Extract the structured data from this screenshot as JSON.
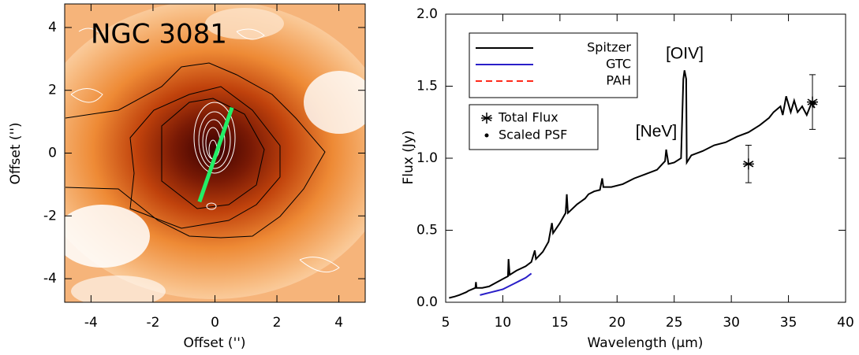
{
  "chart_data": [
    {
      "type": "image",
      "title": "NGC 3081",
      "xlabel": "Offset ('')",
      "ylabel": "Offset ('')",
      "xlim": [
        -4.85,
        4.85
      ],
      "ylim": [
        -4.75,
        4.75
      ],
      "xticks": [
        -4,
        -2,
        0,
        2,
        4
      ],
      "yticks": [
        -4,
        -2,
        0,
        2,
        4
      ],
      "segment": {
        "x": [
          -0.5,
          0.55
        ],
        "y": [
          -1.55,
          1.45
        ],
        "color": "#22ee66"
      }
    },
    {
      "type": "line",
      "xlabel": "Wavelength (μm)",
      "ylabel": "Flux (Jy)",
      "xlim": [
        5,
        40
      ],
      "ylim": [
        0,
        2
      ],
      "xticks": [
        5,
        10,
        15,
        20,
        25,
        30,
        35,
        40
      ],
      "yticks": [
        {
          "value": 0,
          "label": "0.0"
        },
        0.5,
        {
          "value": 1,
          "label": "1.0"
        },
        1.5,
        {
          "value": 2,
          "label": "2.0"
        }
      ],
      "annotations": [
        "[OIV]",
        "[NeV]"
      ],
      "series": [
        {
          "name": "Spitzer",
          "color": "#000000",
          "dash": false,
          "x": [
            5.3,
            5.8,
            6.2,
            6.8,
            7.0,
            7.3,
            7.6,
            7.65,
            7.7,
            8.2,
            8.8,
            9.5,
            10.2,
            10.45,
            10.5,
            10.6,
            11.2,
            12.0,
            12.5,
            12.8,
            12.9,
            13.5,
            14.0,
            14.3,
            14.4,
            15.0,
            15.5,
            15.6,
            15.7,
            16.5,
            17.2,
            17.5,
            18.0,
            18.5,
            18.7,
            18.8,
            19.5,
            20.5,
            21.5,
            22.5,
            23.5,
            24.2,
            24.3,
            24.5,
            25.0,
            25.6,
            25.8,
            25.9,
            26.05,
            26.1,
            26.5,
            27.5,
            28.5,
            29.5,
            30.5,
            31.5,
            32.5,
            33.3,
            33.7,
            34.3,
            34.5,
            34.8,
            35.2,
            35.5,
            35.8,
            36.2,
            36.6,
            37.0,
            37.3
          ],
          "values": [
            0.03,
            0.04,
            0.05,
            0.07,
            0.08,
            0.09,
            0.1,
            0.14,
            0.1,
            0.1,
            0.11,
            0.14,
            0.17,
            0.18,
            0.3,
            0.19,
            0.22,
            0.25,
            0.28,
            0.36,
            0.3,
            0.35,
            0.42,
            0.55,
            0.48,
            0.55,
            0.62,
            0.75,
            0.62,
            0.68,
            0.72,
            0.75,
            0.77,
            0.78,
            0.86,
            0.8,
            0.8,
            0.82,
            0.86,
            0.89,
            0.92,
            0.98,
            1.06,
            0.96,
            0.97,
            1.0,
            1.55,
            1.61,
            1.55,
            0.97,
            1.02,
            1.05,
            1.09,
            1.11,
            1.15,
            1.18,
            1.23,
            1.28,
            1.32,
            1.36,
            1.3,
            1.43,
            1.32,
            1.4,
            1.32,
            1.36,
            1.3,
            1.38,
            1.35
          ]
        },
        {
          "name": "GTC",
          "color": "#2a1fc8",
          "dash": false,
          "x": [
            8.0,
            8.5,
            9.0,
            9.5,
            10.0,
            10.5,
            11.0,
            11.5,
            12.0,
            12.5
          ],
          "values": [
            0.05,
            0.06,
            0.07,
            0.08,
            0.09,
            0.11,
            0.13,
            0.15,
            0.17,
            0.2
          ]
        },
        {
          "name": "PAH",
          "color": "#ff2a1a",
          "dash": true,
          "x": [],
          "values": []
        }
      ],
      "points": [
        {
          "name": "Total Flux",
          "marker": "asterisk",
          "x": [
            31.5,
            37.1
          ],
          "values": [
            0.96,
            1.39
          ],
          "errors": [
            0.13,
            0.19
          ]
        },
        {
          "name": "Scaled PSF",
          "marker": "dot",
          "x": [
            37.25
          ],
          "values": [
            1.38
          ]
        }
      ]
    }
  ]
}
